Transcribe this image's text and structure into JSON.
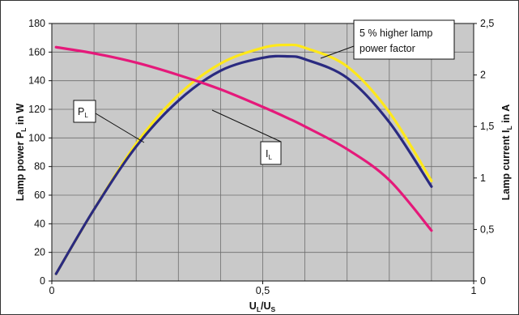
{
  "chart_data": {
    "type": "line",
    "x": [
      0.01,
      0.1,
      0.2,
      0.3,
      0.4,
      0.5,
      0.56,
      0.6,
      0.7,
      0.8,
      0.9
    ],
    "xlim": [
      0,
      1
    ],
    "x_ticks": [
      "0",
      "0,5",
      "1"
    ],
    "xlabel": {
      "main": "U",
      "sub1": "L",
      "mid": "/U",
      "sub2": "S"
    },
    "ylim_left": [
      0,
      180
    ],
    "y_ticks_left": [
      "0",
      "20",
      "40",
      "60",
      "80",
      "100",
      "120",
      "140",
      "160",
      "180"
    ],
    "ylabel_left": {
      "main": "Lamp power P",
      "sub": "L",
      "tail": " in W"
    },
    "ylim_right": [
      0,
      2.5
    ],
    "y_ticks_right": [
      "0",
      "0,5",
      "1",
      "1,5",
      "2",
      "2,5"
    ],
    "ylabel_right": {
      "main": "Lamp current I",
      "sub": "L",
      "tail": " in A"
    },
    "grid": true,
    "series": [
      {
        "key": "p_higher",
        "axis": "left",
        "color": "#ffe81a",
        "values": [
          5,
          50,
          96,
          130,
          152,
          163,
          165,
          163,
          150,
          118,
          70
        ]
      },
      {
        "key": "p_l",
        "axis": "left",
        "color": "#2a2a80",
        "values": [
          5,
          50,
          94,
          126,
          147,
          156,
          157,
          155,
          142,
          111,
          66
        ]
      },
      {
        "key": "i_l",
        "axis": "right",
        "color": "#e5197a",
        "values": [
          2.27,
          2.21,
          2.12,
          2.0,
          1.86,
          1.69,
          1.58,
          1.5,
          1.28,
          0.98,
          0.49
        ]
      }
    ],
    "annotations": [
      {
        "key": "label-pl",
        "main": "P",
        "sub": "L"
      },
      {
        "key": "label-il",
        "main": "I",
        "sub": "L"
      },
      {
        "key": "label-higher",
        "lines": [
          "5 % higher lamp",
          "power factor"
        ]
      }
    ]
  }
}
